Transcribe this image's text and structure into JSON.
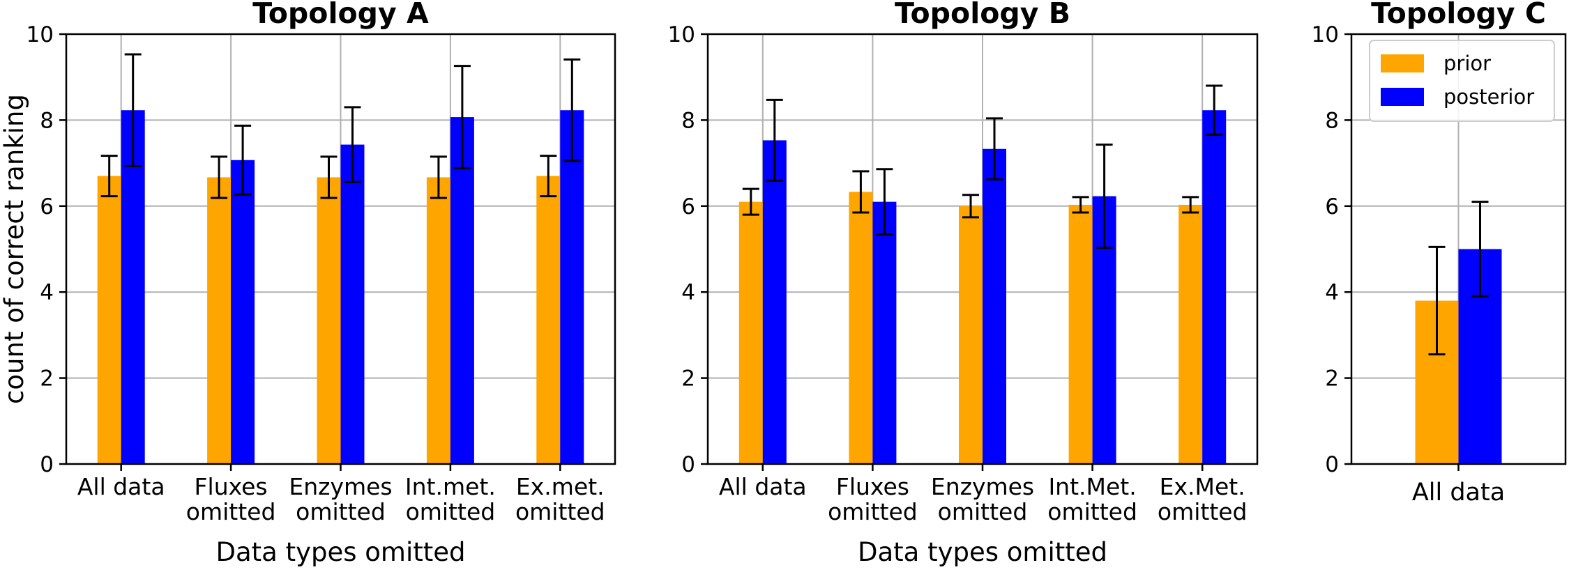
{
  "colors": {
    "prior": "#FFA500",
    "posterior": "#0000FF",
    "grid": "#b0b0b0",
    "axis": "#000000",
    "errorbar": "#000000"
  },
  "chart_data": [
    {
      "type": "bar",
      "title": "Topology A",
      "xlabel": "Data types omitted",
      "ylabel": "count of correct ranking",
      "ylim": [
        0,
        10
      ],
      "yticks": [
        "0",
        "2",
        "4",
        "6",
        "8",
        "10"
      ],
      "grid": true,
      "categories": [
        [
          "All data"
        ],
        [
          "Fluxes",
          "omitted"
        ],
        [
          "Enzymes",
          "omitted"
        ],
        [
          "Int.met.",
          "omitted"
        ],
        [
          "Ex.met.",
          "omitted"
        ]
      ],
      "series": [
        {
          "name": "prior",
          "values": [
            6.7,
            6.67,
            6.67,
            6.67,
            6.7
          ],
          "errors": [
            0.47,
            0.48,
            0.48,
            0.48,
            0.47
          ]
        },
        {
          "name": "posterior",
          "values": [
            8.23,
            7.07,
            7.43,
            8.07,
            8.23
          ],
          "errors": [
            1.3,
            0.8,
            0.87,
            1.19,
            1.18
          ]
        }
      ]
    },
    {
      "type": "bar",
      "title": "Topology B",
      "xlabel": "Data types omitted",
      "ylabel": "",
      "ylim": [
        0,
        10
      ],
      "yticks": [
        "0",
        "2",
        "4",
        "6",
        "8",
        "10"
      ],
      "grid": true,
      "categories": [
        [
          "All data"
        ],
        [
          "Fluxes",
          "omitted"
        ],
        [
          "Enzymes",
          "omitted"
        ],
        [
          "Int.Met.",
          "omitted"
        ],
        [
          "Ex.Met.",
          "omitted"
        ]
      ],
      "series": [
        {
          "name": "prior",
          "values": [
            6.1,
            6.33,
            6.0,
            6.03,
            6.03
          ],
          "errors": [
            0.3,
            0.48,
            0.26,
            0.18,
            0.18
          ]
        },
        {
          "name": "posterior",
          "values": [
            7.53,
            6.1,
            7.33,
            6.23,
            8.23
          ],
          "errors": [
            0.94,
            0.76,
            0.71,
            1.2,
            0.57
          ]
        }
      ]
    },
    {
      "type": "bar",
      "title": "Topology C",
      "xlabel": "",
      "ylabel": "",
      "ylim": [
        0,
        10
      ],
      "yticks": [
        "0",
        "2",
        "4",
        "6",
        "8",
        "10"
      ],
      "grid": true,
      "legend": {
        "placement": "top-right",
        "entries": [
          "prior",
          "posterior"
        ]
      },
      "categories": [
        [
          "All data"
        ]
      ],
      "series": [
        {
          "name": "prior",
          "values": [
            3.8
          ],
          "errors": [
            1.25
          ]
        },
        {
          "name": "posterior",
          "values": [
            5.0
          ],
          "errors": [
            1.1
          ]
        }
      ]
    }
  ]
}
